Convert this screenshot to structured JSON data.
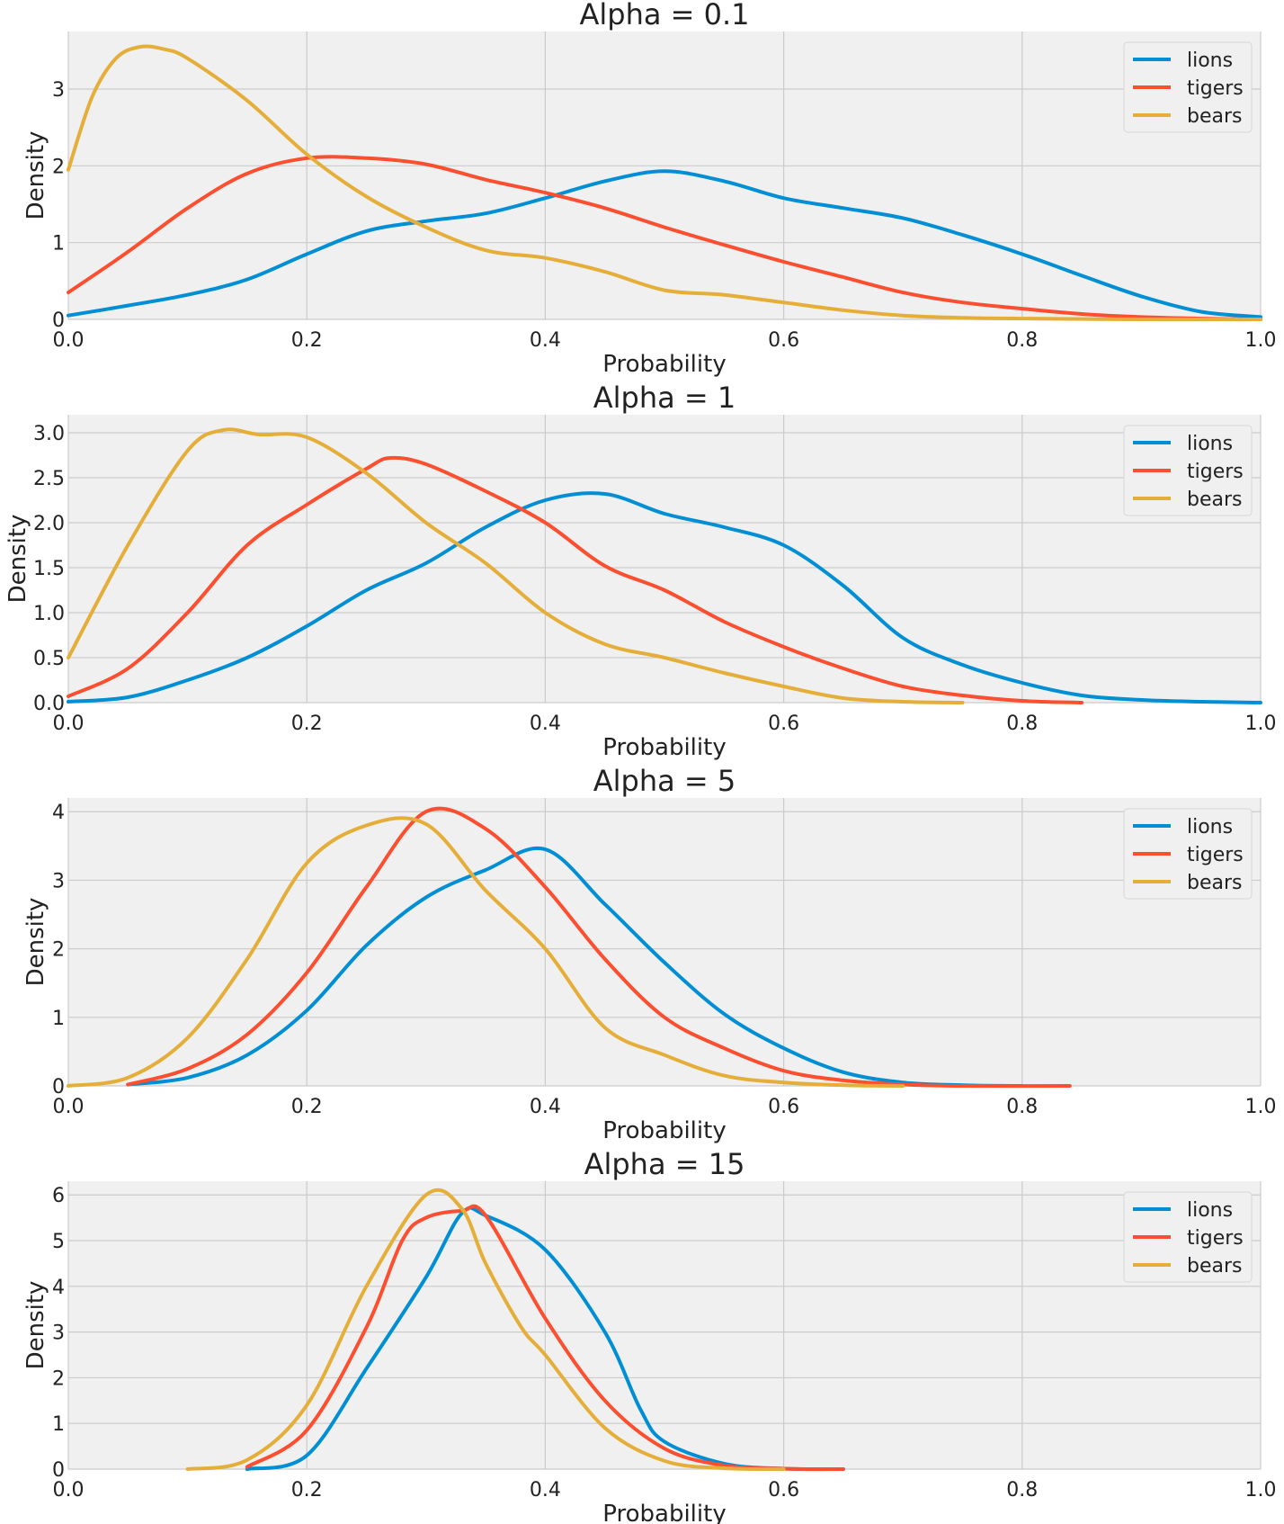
{
  "colors": {
    "background": "#ffffff",
    "axes_face": "#f0f0f0",
    "grid": "#cbcbcb",
    "lions": "#008fd5",
    "tigers": "#fc4f30",
    "bears": "#e5ae38"
  },
  "chart_data": [
    {
      "type": "line",
      "title": "Alpha = 0.1",
      "xlabel": "Probability",
      "ylabel": "Density",
      "xlim": [
        0,
        1
      ],
      "ylim": [
        0,
        3.75
      ],
      "xticks": [
        "0.0",
        "0.2",
        "0.4",
        "0.6",
        "0.8",
        "1.0"
      ],
      "yticks": [
        "0",
        "1",
        "2",
        "3"
      ],
      "ytick_values": [
        0,
        1,
        2,
        3
      ],
      "grid": true,
      "legend": "top-right",
      "series": [
        {
          "name": "lions",
          "color": "#008fd5",
          "x": [
            0,
            0.05,
            0.1,
            0.15,
            0.2,
            0.25,
            0.3,
            0.35,
            0.4,
            0.45,
            0.5,
            0.55,
            0.6,
            0.65,
            0.7,
            0.75,
            0.8,
            0.85,
            0.9,
            0.95,
            1.0
          ],
          "y": [
            0.05,
            0.18,
            0.32,
            0.52,
            0.85,
            1.15,
            1.28,
            1.38,
            1.58,
            1.8,
            1.93,
            1.8,
            1.58,
            1.45,
            1.32,
            1.1,
            0.85,
            0.57,
            0.3,
            0.1,
            0.03
          ]
        },
        {
          "name": "tigers",
          "color": "#fc4f30",
          "x": [
            0,
            0.05,
            0.1,
            0.15,
            0.2,
            0.25,
            0.3,
            0.35,
            0.4,
            0.45,
            0.5,
            0.55,
            0.6,
            0.65,
            0.7,
            0.75,
            0.8,
            0.85,
            0.9,
            0.95,
            1.0
          ],
          "y": [
            0.35,
            0.88,
            1.45,
            1.9,
            2.1,
            2.1,
            2.02,
            1.82,
            1.65,
            1.45,
            1.2,
            0.97,
            0.75,
            0.55,
            0.35,
            0.22,
            0.14,
            0.07,
            0.03,
            0.01,
            0.0
          ]
        },
        {
          "name": "bears",
          "color": "#e5ae38",
          "x": [
            0,
            0.02,
            0.04,
            0.06,
            0.08,
            0.1,
            0.15,
            0.2,
            0.25,
            0.3,
            0.35,
            0.4,
            0.45,
            0.5,
            0.55,
            0.6,
            0.65,
            0.7,
            0.75,
            0.8,
            0.9,
            1.0
          ],
          "y": [
            1.95,
            2.9,
            3.4,
            3.55,
            3.52,
            3.4,
            2.85,
            2.15,
            1.6,
            1.2,
            0.9,
            0.8,
            0.62,
            0.38,
            0.32,
            0.22,
            0.12,
            0.05,
            0.02,
            0.01,
            0.0,
            0.0
          ]
        }
      ]
    },
    {
      "type": "line",
      "title": "Alpha = 1",
      "xlabel": "Probability",
      "ylabel": "Density",
      "xlim": [
        0,
        1
      ],
      "ylim": [
        0,
        3.2
      ],
      "xticks": [
        "0.0",
        "0.2",
        "0.4",
        "0.6",
        "0.8",
        "1.0"
      ],
      "yticks": [
        "0.0",
        "0.5",
        "1.0",
        "1.5",
        "2.0",
        "2.5",
        "3.0"
      ],
      "ytick_values": [
        0,
        0.5,
        1.0,
        1.5,
        2.0,
        2.5,
        3.0
      ],
      "grid": true,
      "legend": "top-right",
      "series": [
        {
          "name": "lions",
          "color": "#008fd5",
          "x": [
            0,
            0.05,
            0.1,
            0.15,
            0.2,
            0.25,
            0.3,
            0.35,
            0.4,
            0.45,
            0.5,
            0.55,
            0.6,
            0.65,
            0.7,
            0.75,
            0.8,
            0.85,
            0.9,
            0.95,
            1.0
          ],
          "y": [
            0.01,
            0.06,
            0.25,
            0.5,
            0.85,
            1.25,
            1.55,
            1.95,
            2.25,
            2.32,
            2.1,
            1.95,
            1.75,
            1.3,
            0.72,
            0.42,
            0.22,
            0.08,
            0.03,
            0.01,
            0.0
          ]
        },
        {
          "name": "tigers",
          "color": "#fc4f30",
          "x": [
            0,
            0.05,
            0.1,
            0.15,
            0.2,
            0.25,
            0.27,
            0.3,
            0.35,
            0.4,
            0.45,
            0.5,
            0.55,
            0.6,
            0.65,
            0.7,
            0.75,
            0.8,
            0.85
          ],
          "y": [
            0.07,
            0.38,
            1.0,
            1.75,
            2.2,
            2.6,
            2.72,
            2.65,
            2.35,
            2.0,
            1.52,
            1.25,
            0.9,
            0.62,
            0.38,
            0.18,
            0.08,
            0.02,
            0.0
          ]
        },
        {
          "name": "bears",
          "color": "#e5ae38",
          "x": [
            0,
            0.05,
            0.1,
            0.13,
            0.16,
            0.2,
            0.25,
            0.3,
            0.35,
            0.4,
            0.45,
            0.5,
            0.55,
            0.6,
            0.65,
            0.7,
            0.75
          ],
          "y": [
            0.5,
            1.75,
            2.8,
            3.03,
            2.98,
            2.95,
            2.55,
            2.0,
            1.55,
            1.0,
            0.65,
            0.5,
            0.33,
            0.18,
            0.05,
            0.01,
            0.0
          ]
        }
      ]
    },
    {
      "type": "line",
      "title": "Alpha = 5",
      "xlabel": "Probability",
      "ylabel": "Density",
      "xlim": [
        0,
        1
      ],
      "ylim": [
        0,
        4.2
      ],
      "xticks": [
        "0.0",
        "0.2",
        "0.4",
        "0.6",
        "0.8",
        "1.0"
      ],
      "yticks": [
        "0",
        "1",
        "2",
        "3",
        "4"
      ],
      "ytick_values": [
        0,
        1,
        2,
        3,
        4
      ],
      "grid": true,
      "legend": "top-right",
      "series": [
        {
          "name": "lions",
          "color": "#008fd5",
          "x": [
            0.05,
            0.1,
            0.15,
            0.2,
            0.25,
            0.3,
            0.35,
            0.4,
            0.45,
            0.5,
            0.55,
            0.6,
            0.65,
            0.7,
            0.75,
            0.8
          ],
          "y": [
            0.02,
            0.12,
            0.45,
            1.1,
            2.05,
            2.75,
            3.15,
            3.45,
            2.65,
            1.8,
            1.05,
            0.55,
            0.2,
            0.05,
            0.01,
            0.0
          ]
        },
        {
          "name": "tigers",
          "color": "#fc4f30",
          "x": [
            0.05,
            0.1,
            0.15,
            0.2,
            0.25,
            0.3,
            0.35,
            0.4,
            0.45,
            0.5,
            0.55,
            0.6,
            0.65,
            0.7,
            0.75,
            0.84
          ],
          "y": [
            0.02,
            0.25,
            0.75,
            1.65,
            2.9,
            4.0,
            3.75,
            2.9,
            1.85,
            1.0,
            0.55,
            0.22,
            0.08,
            0.02,
            0.0,
            0.0
          ]
        },
        {
          "name": "bears",
          "color": "#e5ae38",
          "x": [
            0.0,
            0.05,
            0.1,
            0.15,
            0.2,
            0.25,
            0.3,
            0.35,
            0.4,
            0.45,
            0.5,
            0.55,
            0.6,
            0.65,
            0.7
          ],
          "y": [
            0.0,
            0.12,
            0.7,
            1.85,
            3.25,
            3.8,
            3.82,
            2.85,
            2.0,
            0.85,
            0.45,
            0.15,
            0.05,
            0.01,
            0.0
          ]
        }
      ]
    },
    {
      "type": "line",
      "title": "Alpha = 15",
      "xlabel": "Probability",
      "ylabel": "Density",
      "xlim": [
        0,
        1
      ],
      "ylim": [
        0,
        6.3
      ],
      "xticks": [
        "0.0",
        "0.2",
        "0.4",
        "0.6",
        "0.8",
        "1.0"
      ],
      "yticks": [
        "0",
        "1",
        "2",
        "3",
        "4",
        "5",
        "6"
      ],
      "ytick_values": [
        0,
        1,
        2,
        3,
        4,
        5,
        6
      ],
      "grid": true,
      "legend": "top-right",
      "series": [
        {
          "name": "lions",
          "color": "#008fd5",
          "x": [
            0.15,
            0.2,
            0.25,
            0.3,
            0.33,
            0.35,
            0.4,
            0.45,
            0.48,
            0.5,
            0.55,
            0.6,
            0.65
          ],
          "y": [
            0.0,
            0.3,
            2.2,
            4.2,
            5.6,
            5.55,
            4.8,
            3.0,
            1.3,
            0.6,
            0.12,
            0.01,
            0.0
          ]
        },
        {
          "name": "tigers",
          "color": "#fc4f30",
          "x": [
            0.15,
            0.2,
            0.25,
            0.28,
            0.3,
            0.33,
            0.35,
            0.4,
            0.45,
            0.5,
            0.55,
            0.6,
            0.65
          ],
          "y": [
            0.05,
            0.85,
            3.1,
            5.0,
            5.5,
            5.65,
            5.55,
            3.3,
            1.5,
            0.45,
            0.08,
            0.01,
            0.0
          ]
        },
        {
          "name": "bears",
          "color": "#e5ae38",
          "x": [
            0.1,
            0.15,
            0.2,
            0.25,
            0.3,
            0.33,
            0.35,
            0.38,
            0.4,
            0.45,
            0.5,
            0.55,
            0.6
          ],
          "y": [
            0.0,
            0.2,
            1.4,
            4.0,
            6.0,
            5.7,
            4.5,
            3.1,
            2.5,
            0.9,
            0.18,
            0.02,
            0.0
          ]
        }
      ]
    }
  ]
}
